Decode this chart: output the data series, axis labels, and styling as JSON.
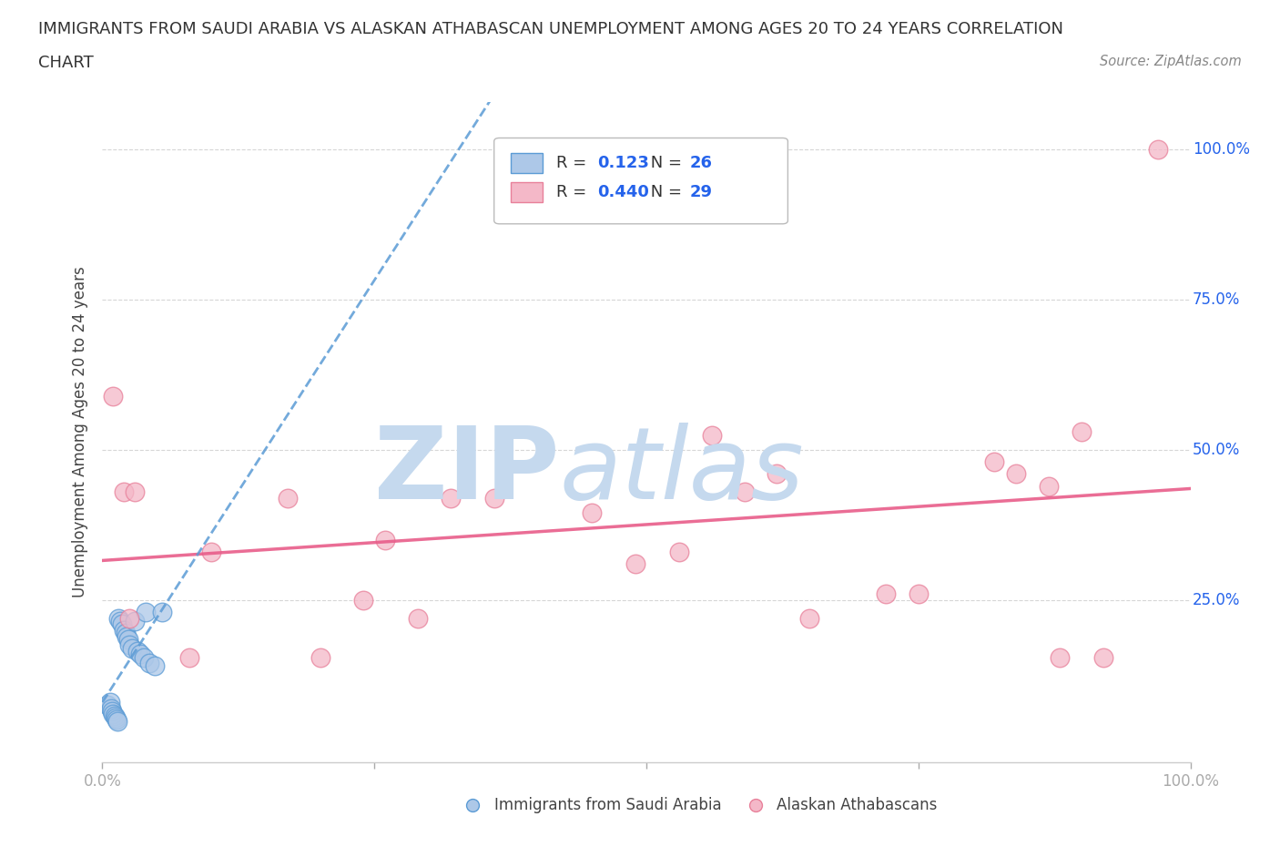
{
  "title_line1": "IMMIGRANTS FROM SAUDI ARABIA VS ALASKAN ATHABASCAN UNEMPLOYMENT AMONG AGES 20 TO 24 YEARS CORRELATION",
  "title_line2": "CHART",
  "source": "Source: ZipAtlas.com",
  "ylabel": "Unemployment Among Ages 20 to 24 years",
  "xlim": [
    0.0,
    1.0
  ],
  "ylim": [
    -0.02,
    1.08
  ],
  "r_blue": 0.123,
  "n_blue": 26,
  "r_pink": 0.44,
  "n_pink": 29,
  "legend1_label": "Immigrants from Saudi Arabia",
  "legend2_label": "Alaskan Athabascans",
  "blue_scatter_x": [
    0.005,
    0.007,
    0.008,
    0.009,
    0.01,
    0.011,
    0.012,
    0.013,
    0.014,
    0.015,
    0.016,
    0.018,
    0.02,
    0.021,
    0.022,
    0.024,
    0.025,
    0.027,
    0.03,
    0.032,
    0.035,
    0.038,
    0.04,
    0.043,
    0.048,
    0.055
  ],
  "blue_scatter_y": [
    0.075,
    0.08,
    0.07,
    0.065,
    0.06,
    0.058,
    0.055,
    0.052,
    0.048,
    0.22,
    0.215,
    0.21,
    0.2,
    0.195,
    0.19,
    0.185,
    0.175,
    0.17,
    0.215,
    0.165,
    0.16,
    0.155,
    0.23,
    0.145,
    0.14,
    0.23
  ],
  "pink_scatter_x": [
    0.01,
    0.02,
    0.025,
    0.03,
    0.08,
    0.1,
    0.17,
    0.2,
    0.24,
    0.26,
    0.29,
    0.32,
    0.36,
    0.45,
    0.49,
    0.53,
    0.56,
    0.59,
    0.62,
    0.65,
    0.72,
    0.75,
    0.82,
    0.84,
    0.87,
    0.88,
    0.9,
    0.92,
    0.97
  ],
  "pink_scatter_y": [
    0.59,
    0.43,
    0.22,
    0.43,
    0.155,
    0.33,
    0.42,
    0.155,
    0.25,
    0.35,
    0.22,
    0.42,
    0.42,
    0.395,
    0.31,
    0.33,
    0.525,
    0.43,
    0.46,
    0.22,
    0.26,
    0.26,
    0.48,
    0.46,
    0.44,
    0.155,
    0.53,
    0.155,
    1.0
  ],
  "blue_color": "#adc8e8",
  "blue_edge_color": "#5b9bd5",
  "pink_color": "#f4b8c8",
  "pink_edge_color": "#e8809a",
  "trend_blue_color": "#5b9bd5",
  "trend_pink_color": "#e85d8a",
  "grid_color": "#cccccc",
  "background_color": "#ffffff",
  "watermark_color_zip": "#c5d9ee",
  "watermark_color_atlas": "#c5d9ee",
  "legend_text_color": "#2563eb",
  "ytick_positions": [
    0.25,
    0.5,
    0.75,
    1.0
  ],
  "ytick_labels": [
    "25.0%",
    "50.0%",
    "75.0%",
    "100.0%"
  ],
  "xtick_positions": [
    0.0,
    0.25,
    0.5,
    0.75,
    1.0
  ]
}
